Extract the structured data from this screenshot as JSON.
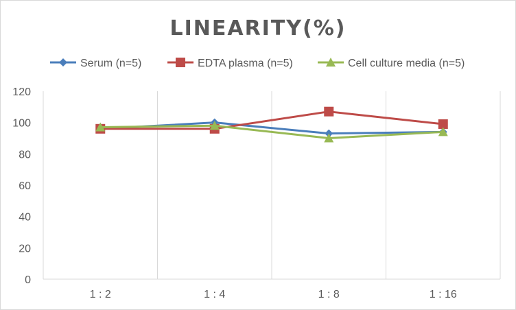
{
  "chart_data": {
    "type": "line",
    "title": "LINEARITY(%)",
    "xlabel": "",
    "ylabel": "",
    "categories": [
      "1:2",
      "1:4",
      "1:8",
      "1:16"
    ],
    "ylim": [
      0,
      120
    ],
    "yticks": [
      0,
      20,
      40,
      60,
      80,
      100,
      120
    ],
    "grid": "vertical",
    "legend_position": "top",
    "series": [
      {
        "name": "Serum (n=5)",
        "values": [
          96,
          100,
          93,
          94
        ],
        "color": "#4a7ebb",
        "marker": "diamond"
      },
      {
        "name": "EDTA plasma (n=5)",
        "values": [
          96,
          96,
          107,
          99
        ],
        "color": "#be4b48",
        "marker": "square"
      },
      {
        "name": "Cell culture media (n=5)",
        "values": [
          97,
          98,
          90,
          94
        ],
        "color": "#98b954",
        "marker": "triangle"
      }
    ]
  }
}
